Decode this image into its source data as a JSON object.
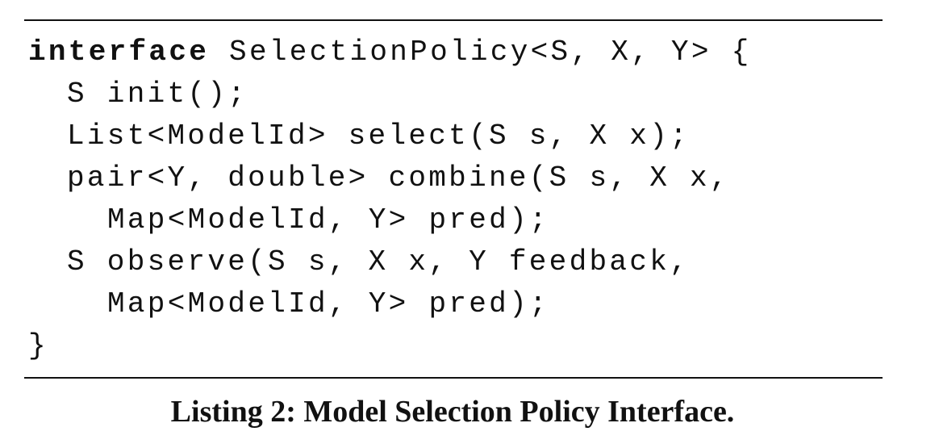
{
  "listing": {
    "keyword": "interface",
    "lines": [
      "SelectionPolicy<S, X, Y> {",
      "S init();",
      "List<ModelId> select(S s, X x);",
      "pair<Y, double> combine(S s, X x,",
      "Map<ModelId, Y> pred);",
      "S observe(S s, X x, Y feedback,",
      "Map<ModelId, Y> pred);",
      "}"
    ],
    "caption": "Listing 2: Model Selection Policy Interface."
  }
}
